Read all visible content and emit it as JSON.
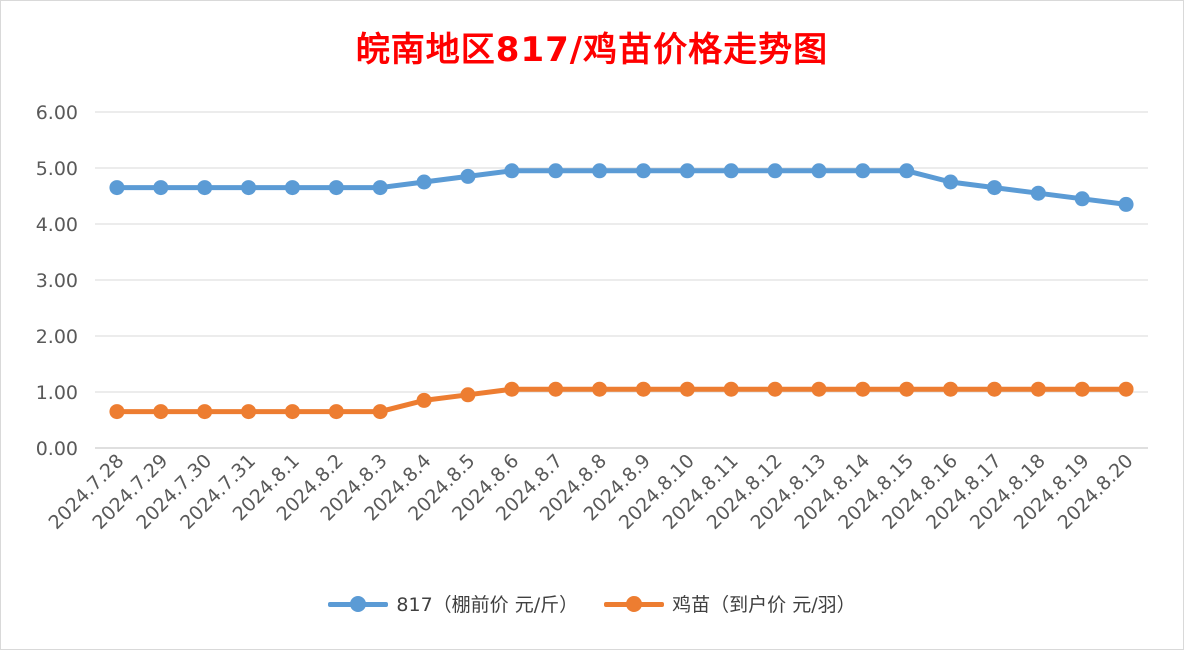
{
  "chart_data": {
    "type": "line",
    "title": "皖南地区817/鸡苗价格走势图",
    "categories": [
      "2024.7.28",
      "2024.7.29",
      "2024.7.30",
      "2024.7.31",
      "2024.8.1",
      "2024.8.2",
      "2024.8.3",
      "2024.8.4",
      "2024.8.5",
      "2024.8.6",
      "2024.8.7",
      "2024.8.8",
      "2024.8.9",
      "2024.8.10",
      "2024.8.11",
      "2024.8.12",
      "2024.8.13",
      "2024.8.14",
      "2024.8.15",
      "2024.8.16",
      "2024.8.17",
      "2024.8.18",
      "2024.8.19",
      "2024.8.20"
    ],
    "series": [
      {
        "name": "817（棚前价 元/斤）",
        "color": "#5b9bd5",
        "values": [
          4.65,
          4.65,
          4.65,
          4.65,
          4.65,
          4.65,
          4.65,
          4.75,
          4.85,
          4.95,
          4.95,
          4.95,
          4.95,
          4.95,
          4.95,
          4.95,
          4.95,
          4.95,
          4.95,
          4.75,
          4.65,
          4.55,
          4.45,
          4.35
        ]
      },
      {
        "name": "鸡苗（到户价 元/羽）",
        "color": "#ed7d31",
        "values": [
          0.65,
          0.65,
          0.65,
          0.65,
          0.65,
          0.65,
          0.65,
          0.85,
          0.95,
          1.05,
          1.05,
          1.05,
          1.05,
          1.05,
          1.05,
          1.05,
          1.05,
          1.05,
          1.05,
          1.05,
          1.05,
          1.05,
          1.05,
          1.05
        ]
      }
    ],
    "y_ticks": [
      "0.00",
      "1.00",
      "2.00",
      "3.00",
      "4.00",
      "5.00",
      "6.00"
    ],
    "ylim": [
      0,
      6
    ],
    "grid": true,
    "legend_position": "bottom"
  }
}
